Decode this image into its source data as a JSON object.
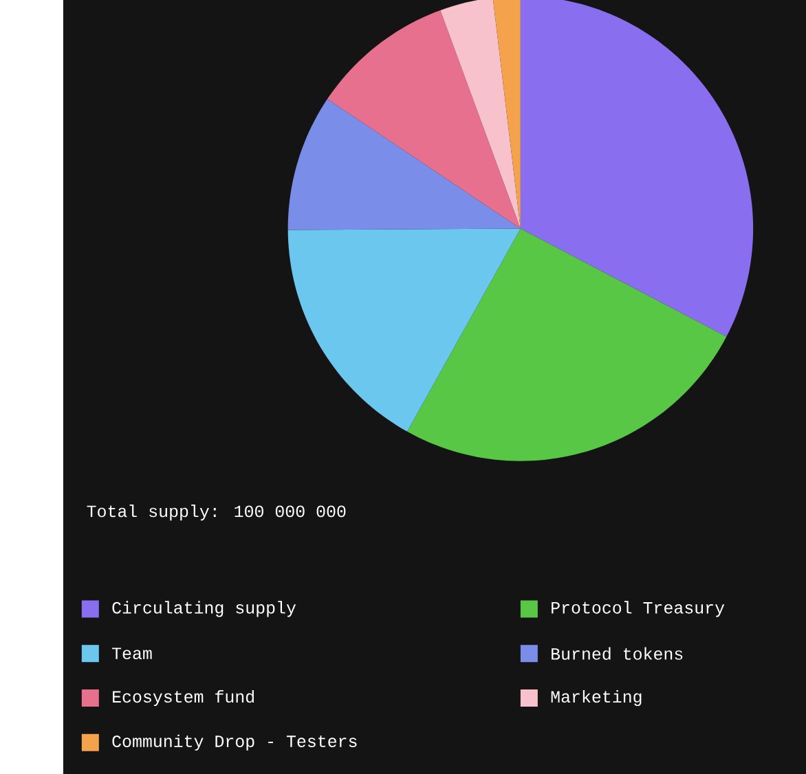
{
  "chart_data": {
    "type": "pie",
    "annotations": [
      "Total supply: 100 000 000"
    ],
    "categories": [
      "Circulating supply",
      "Protocol Treasury",
      "Team",
      "Burned tokens",
      "Ecosystem fund",
      "Marketing",
      "Community Drop - Testers"
    ],
    "values": [
      32.7,
      25.4,
      16.8,
      9.5,
      10,
      3.7,
      1.9
    ],
    "colors": [
      "#8a6ef0",
      "#58c746",
      "#6cc7ee",
      "#7a8ee9",
      "#e8708f",
      "#f8c2cd",
      "#f4a24c"
    ],
    "legend": "bottom"
  }
}
